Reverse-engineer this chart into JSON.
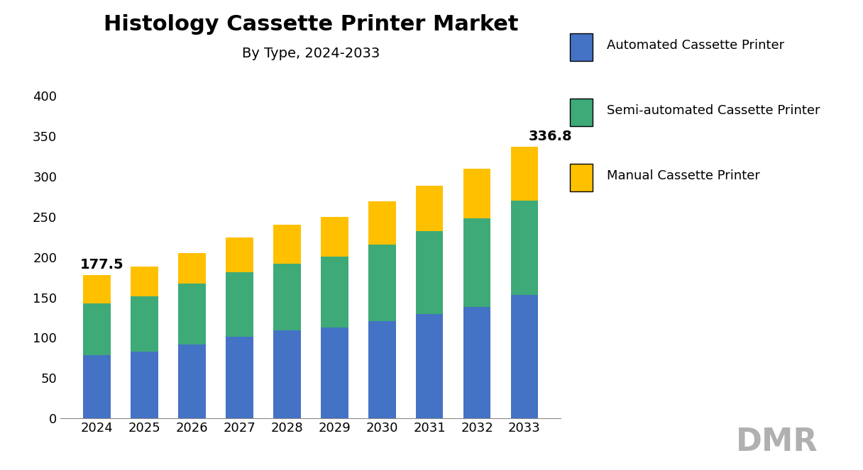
{
  "title": "Histology Cassette Printer Market",
  "subtitle": "By Type, 2024-2033",
  "years": [
    2024,
    2025,
    2026,
    2027,
    2028,
    2029,
    2030,
    2031,
    2032,
    2033
  ],
  "automated": [
    78,
    83,
    92,
    101,
    109,
    113,
    121,
    129,
    138,
    153
  ],
  "semi_automated": [
    65,
    68,
    75,
    80,
    83,
    88,
    95,
    103,
    110,
    117
  ],
  "manual": [
    34.5,
    37,
    38,
    43,
    48,
    49,
    53,
    57,
    62,
    66.8
  ],
  "totals_label": {
    "2024": "177.5",
    "2033": "336.8"
  },
  "color_automated": "#4472C4",
  "color_semi": "#3DAA78",
  "color_manual": "#FFC000",
  "legend_automated": "Automated Cassette Printer",
  "legend_semi": "Semi-automated Cassette Printer",
  "legend_manual": "Manual Cassette Printer",
  "ylim": [
    0,
    420
  ],
  "yticks": [
    0,
    50,
    100,
    150,
    200,
    250,
    300,
    350,
    400
  ],
  "bg_color": "#FFFFFF",
  "title_fontsize": 22,
  "subtitle_fontsize": 14,
  "tick_fontsize": 13,
  "legend_fontsize": 13,
  "annotation_fontsize": 14
}
